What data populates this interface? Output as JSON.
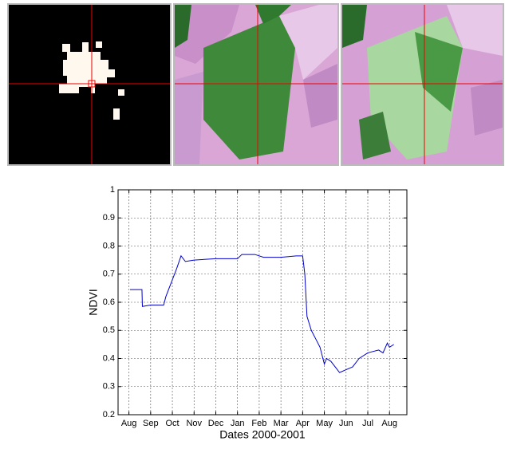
{
  "chart_data": {
    "type": "line",
    "xlabel": "Dates 2000-2001",
    "ylabel": "NDVI",
    "x": [
      0.05,
      0.6,
      0.62,
      1.0,
      1.6,
      1.7,
      2.0,
      2.2,
      2.4,
      2.6,
      3.0,
      4.0,
      5.0,
      5.2,
      5.8,
      6.2,
      7.0,
      7.7,
      8.0,
      8.1,
      8.2,
      8.4,
      8.6,
      8.8,
      9.0,
      9.1,
      9.3,
      9.5,
      9.7,
      10.0,
      10.3,
      10.6,
      11.0,
      11.5,
      11.7,
      11.9,
      12.0,
      12.2
    ],
    "values": [
      0.645,
      0.645,
      0.585,
      0.59,
      0.59,
      0.62,
      0.68,
      0.72,
      0.765,
      0.745,
      0.75,
      0.755,
      0.755,
      0.77,
      0.77,
      0.76,
      0.76,
      0.765,
      0.765,
      0.7,
      0.55,
      0.5,
      0.47,
      0.44,
      0.38,
      0.4,
      0.39,
      0.37,
      0.35,
      0.36,
      0.37,
      0.4,
      0.42,
      0.43,
      0.42,
      0.455,
      0.44,
      0.45
    ],
    "color": "#0000cc",
    "xlim": [
      -0.5,
      12.8
    ],
    "xticks": [
      {
        "value": 0,
        "label": "Aug"
      },
      {
        "value": 1,
        "label": "Sep"
      },
      {
        "value": 2,
        "label": "Oct"
      },
      {
        "value": 3,
        "label": "Nov"
      },
      {
        "value": 4,
        "label": "Dec"
      },
      {
        "value": 5,
        "label": "Jan"
      },
      {
        "value": 6,
        "label": "Feb"
      },
      {
        "value": 7,
        "label": "Mar"
      },
      {
        "value": 8,
        "label": "Apr"
      },
      {
        "value": 9,
        "label": "May"
      },
      {
        "value": 10,
        "label": "Jun"
      },
      {
        "value": 11,
        "label": "Jul"
      },
      {
        "value": 12,
        "label": "Aug"
      }
    ],
    "ylim": [
      0.2,
      1
    ],
    "yticks": [
      0.2,
      0.3,
      0.4,
      0.5,
      0.6,
      0.7,
      0.8,
      0.9,
      1
    ],
    "grid": true
  }
}
